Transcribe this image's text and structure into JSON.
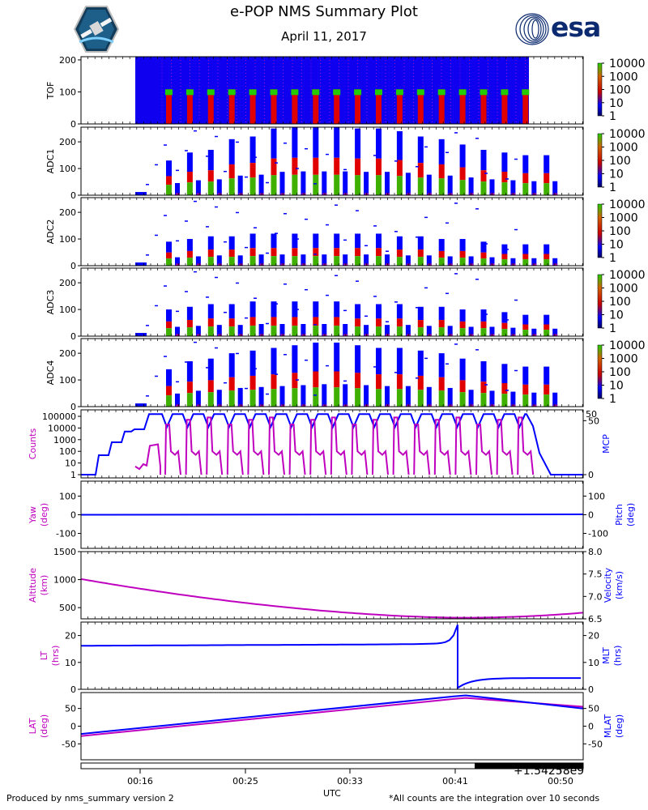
{
  "header": {
    "title": "e-POP NMS Summary Plot",
    "date": "April 11, 2017",
    "left_logo": "epop-mission-patch",
    "right_logo": "esa",
    "right_logo_text": "esa"
  },
  "footer": {
    "produced_by": "Produced by nms_summary version 2",
    "note": "*All counts are the integration over 10 seconds",
    "xlabel": "UTC",
    "time_offset": "+1.54258e9"
  },
  "colors": {
    "magenta": "#bf00bf",
    "blue": "#0000ff",
    "red": "#e00000",
    "green": "#22cc00"
  },
  "chart_data": [
    {
      "type": "heatmap",
      "panel": "TOF",
      "ylabel": "TOF",
      "ylim": [
        0,
        210
      ],
      "yticks": [
        0,
        100,
        200
      ],
      "colorbar": {
        "scale": "log",
        "ticks": [
          "1",
          "10",
          "100",
          "1000",
          "10000"
        ]
      },
      "bursts": 18
    },
    {
      "type": "heatmap",
      "panel": "ADC1",
      "ylabel": "ADC1",
      "ylim": [
        0,
        255
      ],
      "yticks": [
        0,
        100,
        200
      ],
      "colorbar": {
        "scale": "log",
        "ticks": [
          "1",
          "10",
          "100",
          "1000",
          "10000"
        ]
      },
      "peaks": [
        130,
        160,
        170,
        210,
        220,
        250,
        255,
        255,
        255,
        250,
        250,
        240,
        220,
        210,
        190,
        170,
        160,
        150,
        150
      ]
    },
    {
      "type": "heatmap",
      "panel": "ADC2",
      "ylabel": "ADC2",
      "ylim": [
        0,
        255
      ],
      "yticks": [
        0,
        100,
        200
      ],
      "colorbar": {
        "scale": "log",
        "ticks": [
          "1",
          "10",
          "100",
          "1000",
          "10000"
        ]
      },
      "peaks": [
        90,
        100,
        110,
        110,
        120,
        120,
        120,
        120,
        120,
        120,
        120,
        110,
        110,
        100,
        100,
        90,
        80,
        80,
        80
      ]
    },
    {
      "type": "heatmap",
      "panel": "ADC3",
      "ylabel": "ADC3",
      "ylim": [
        0,
        255
      ],
      "yticks": [
        0,
        100,
        200
      ],
      "colorbar": {
        "scale": "log",
        "ticks": [
          "1",
          "10",
          "100",
          "1000",
          "10000"
        ]
      },
      "peaks": [
        100,
        110,
        120,
        120,
        130,
        130,
        130,
        130,
        130,
        120,
        120,
        120,
        110,
        110,
        100,
        100,
        90,
        80,
        80
      ]
    },
    {
      "type": "heatmap",
      "panel": "ADC4",
      "ylabel": "ADC4",
      "ylim": [
        0,
        255
      ],
      "yticks": [
        0,
        100,
        200
      ],
      "colorbar": {
        "scale": "log",
        "ticks": [
          "1",
          "10",
          "100",
          "1000",
          "10000"
        ]
      },
      "peaks": [
        140,
        170,
        180,
        200,
        210,
        220,
        230,
        240,
        240,
        230,
        220,
        220,
        210,
        200,
        180,
        170,
        160,
        150,
        150
      ]
    },
    {
      "type": "line",
      "panel": "counts-mcp",
      "left": {
        "label": "Counts",
        "scale": "log",
        "ticks": [
          "1",
          "10",
          "100",
          "1000",
          "10000",
          "100000"
        ]
      },
      "right": {
        "label": "MCP",
        "ticks": [
          "0",
          "50",
          "50"
        ]
      },
      "series": [
        {
          "name": "Counts",
          "color": "magenta",
          "description": "oscillating ~1 to ~100000, 18 pulses"
        },
        {
          "name": "MCP",
          "color": "blue",
          "description": "steps 0 -> ~18 -> ~35 -> ~48 -> 55, oscillating 45-55, then 0"
        }
      ]
    },
    {
      "type": "line",
      "panel": "yaw-pitch",
      "left": {
        "label": "Yaw (deg)",
        "ticks": [
          "-100",
          "0",
          "100"
        ]
      },
      "right": {
        "label": "Pitch (deg)",
        "ticks": [
          "-100",
          "0",
          "100"
        ]
      },
      "series": [
        {
          "name": "Pitch",
          "color": "blue",
          "constant": 0
        },
        {
          "name": "Yaw",
          "color": "magenta",
          "constant": 0
        }
      ]
    },
    {
      "type": "line",
      "panel": "altitude-velocity",
      "left": {
        "label": "Altitude (km)",
        "ticks": [
          "500",
          "1000",
          "1500"
        ],
        "ylim": [
          300,
          1500
        ]
      },
      "right": {
        "label": "Velocity (km/s)",
        "ticks": [
          "6.5",
          "7.0",
          "7.5",
          "8.0"
        ],
        "ylim": [
          6.5,
          8.0
        ]
      },
      "series": [
        {
          "name": "Altitude",
          "color": "magenta",
          "start": 1010,
          "min": 320,
          "end": 410
        }
      ]
    },
    {
      "type": "line",
      "panel": "lt-mlt",
      "left": {
        "label": "LT (hrs)",
        "ticks": [
          "0",
          "10",
          "20"
        ],
        "ylim": [
          0,
          25
        ]
      },
      "right": {
        "label": "MLT (hrs)",
        "ticks": [
          "0",
          "10",
          "20"
        ],
        "ylim": [
          0,
          25
        ]
      },
      "series": [
        {
          "name": "LT",
          "color": "magenta",
          "start": 16.2
        },
        {
          "name": "MLT",
          "color": "blue",
          "start": 16.2,
          "jump_to": 0.5,
          "end": 4.2
        }
      ]
    },
    {
      "type": "line",
      "panel": "lat-mlat",
      "left": {
        "label": "LAT (deg)",
        "ticks": [
          "-50",
          "0",
          "50"
        ],
        "ylim": [
          -95,
          95
        ]
      },
      "right": {
        "label": "MLAT (deg)",
        "ticks": [
          "-50",
          "0",
          "50"
        ],
        "ylim": [
          -95,
          95
        ]
      },
      "series": [
        {
          "name": "LAT",
          "color": "magenta",
          "start": -28,
          "peak": 80,
          "end": 55
        },
        {
          "name": "MLAT",
          "color": "blue",
          "start": -22,
          "peak": 87,
          "end": 50
        }
      ]
    },
    {
      "type": "bar",
      "panel": "time-axis",
      "xticks": [
        "00:16",
        "00:25",
        "00:33",
        "00:41",
        "00:50"
      ],
      "xlabel": "UTC"
    }
  ]
}
